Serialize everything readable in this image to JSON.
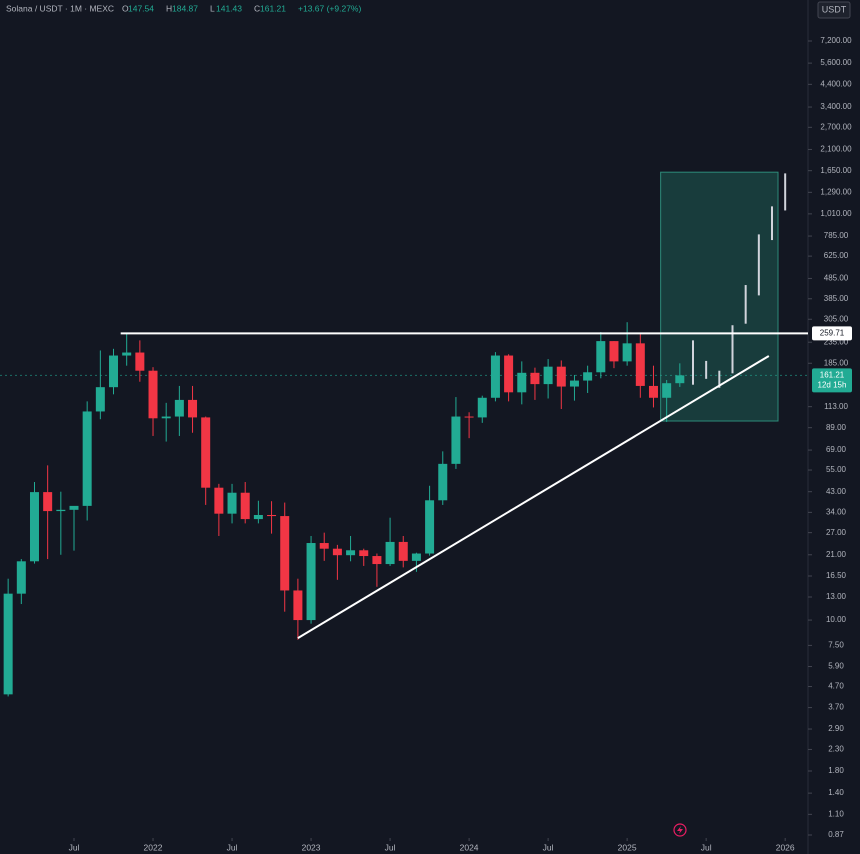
{
  "chart_data": {
    "type": "candlestick",
    "symbol": "Solana / USDT · 1M · MEXC",
    "ohlc_header": {
      "O": 147.54,
      "H": 184.87,
      "L": 141.43,
      "C": 161.21,
      "change": "+13.67 (+9.27%)"
    },
    "currency": "USDT",
    "log_scale": true,
    "ylim": [
      0.87,
      7200
    ],
    "yticks": [
      {
        "value": 7200,
        "label": "7,200.00"
      },
      {
        "value": 5600,
        "label": "5,600.00"
      },
      {
        "value": 4400,
        "label": "4,400.00"
      },
      {
        "value": 3400,
        "label": "3,400.00"
      },
      {
        "value": 2700,
        "label": "2,700.00"
      },
      {
        "value": 2100,
        "label": "2,100.00"
      },
      {
        "value": 1650,
        "label": "1,650.00"
      },
      {
        "value": 1290,
        "label": "1,290.00"
      },
      {
        "value": 1010,
        "label": "1,010.00"
      },
      {
        "value": 785,
        "label": "785.00"
      },
      {
        "value": 625,
        "label": "625.00"
      },
      {
        "value": 485,
        "label": "485.00"
      },
      {
        "value": 385,
        "label": "385.00"
      },
      {
        "value": 305,
        "label": "305.00"
      },
      {
        "value": 235,
        "label": "235.00"
      },
      {
        "value": 185,
        "label": "185.00"
      },
      {
        "value": 113,
        "label": "113.00"
      },
      {
        "value": 89,
        "label": "89.00"
      },
      {
        "value": 69,
        "label": "69.00"
      },
      {
        "value": 55,
        "label": "55.00"
      },
      {
        "value": 43,
        "label": "43.00"
      },
      {
        "value": 34,
        "label": "34.00"
      },
      {
        "value": 27,
        "label": "27.00"
      },
      {
        "value": 21,
        "label": "21.00"
      },
      {
        "value": 16.5,
        "label": "16.50"
      },
      {
        "value": 13,
        "label": "13.00"
      },
      {
        "value": 10,
        "label": "10.00"
      },
      {
        "value": 7.5,
        "label": "7.50"
      },
      {
        "value": 5.9,
        "label": "5.90"
      },
      {
        "value": 4.7,
        "label": "4.70"
      },
      {
        "value": 3.7,
        "label": "3.70"
      },
      {
        "value": 2.9,
        "label": "2.90"
      },
      {
        "value": 2.3,
        "label": "2.30"
      },
      {
        "value": 1.8,
        "label": "1.80"
      },
      {
        "value": 1.4,
        "label": "1.40"
      },
      {
        "value": 1.1,
        "label": "1.10"
      },
      {
        "value": 0.87,
        "label": "0.87"
      }
    ],
    "xticks": [
      {
        "value": "2021-07",
        "label": "Jul"
      },
      {
        "value": "2022-01",
        "label": "2022"
      },
      {
        "value": "2022-07",
        "label": "Jul"
      },
      {
        "value": "2023-01",
        "label": "2023"
      },
      {
        "value": "2023-07",
        "label": "Jul"
      },
      {
        "value": "2024-01",
        "label": "2024"
      },
      {
        "value": "2024-07",
        "label": "Jul"
      },
      {
        "value": "2025-01",
        "label": "2025"
      },
      {
        "value": "2025-07",
        "label": "Jul"
      },
      {
        "value": "2026-01",
        "label": "2026"
      }
    ],
    "up_color": "#22ab94",
    "down_color": "#f23645",
    "candles": {
      "x": [
        "2021-02",
        "2021-03",
        "2021-04",
        "2021-05",
        "2021-06",
        "2021-07",
        "2021-08",
        "2021-09",
        "2021-10",
        "2021-11",
        "2021-12",
        "2022-01",
        "2022-02",
        "2022-03",
        "2022-04",
        "2022-05",
        "2022-06",
        "2022-07",
        "2022-08",
        "2022-09",
        "2022-10",
        "2022-11",
        "2022-12",
        "2023-01",
        "2023-02",
        "2023-03",
        "2023-04",
        "2023-05",
        "2023-06",
        "2023-07",
        "2023-08",
        "2023-09",
        "2023-10",
        "2023-11",
        "2023-12",
        "2024-01",
        "2024-02",
        "2024-03",
        "2024-04",
        "2024-05",
        "2024-06",
        "2024-07",
        "2024-08",
        "2024-09",
        "2024-10",
        "2024-11",
        "2024-12",
        "2025-01",
        "2025-02",
        "2025-03",
        "2025-04",
        "2025-05"
      ],
      "open": [
        4.3,
        13.5,
        19.5,
        42.8,
        34.5,
        35,
        36.6,
        107,
        141,
        202,
        209,
        170,
        99,
        101,
        122,
        100,
        45,
        33.5,
        42.5,
        31.5,
        33,
        32.6,
        14,
        10,
        24,
        22.5,
        20.9,
        22.1,
        20.7,
        18.9,
        24.3,
        19.6,
        21.3,
        39,
        59,
        101,
        100,
        125,
        202,
        133,
        166,
        146,
        178,
        142,
        152,
        167,
        238,
        189,
        232,
        143,
        125,
        147.54
      ],
      "high": [
        16,
        20,
        48,
        58,
        43,
        36,
        120,
        214,
        218,
        259.9,
        240,
        177,
        118,
        143,
        143,
        101,
        47,
        47,
        48,
        38.8,
        38.6,
        38,
        16,
        26,
        27,
        23.5,
        26,
        22.5,
        21.3,
        32,
        26,
        21.5,
        46,
        68,
        126,
        106,
        128,
        210,
        205,
        189,
        176,
        194,
        191,
        162,
        180,
        264,
        238,
        295,
        261,
        180,
        153,
        184.87
      ],
      "low": [
        4.2,
        12,
        19,
        20,
        21,
        22,
        31,
        98,
        130,
        180,
        150,
        81,
        76,
        81,
        84,
        37,
        26,
        30,
        30,
        30,
        26.7,
        11,
        8,
        9.6,
        19.6,
        15.8,
        19.5,
        18.5,
        14.6,
        18.5,
        18.2,
        17.3,
        20.8,
        37,
        55.7,
        79,
        94,
        120,
        120,
        116,
        122,
        124,
        110,
        121,
        132,
        156,
        175,
        180,
        125,
        112,
        95,
        141.43
      ],
      "close": [
        13.5,
        19.5,
        42.8,
        34.5,
        35,
        36.6,
        107,
        141,
        202,
        209,
        170,
        99,
        101,
        122,
        100,
        45,
        33.5,
        42.5,
        31.5,
        33,
        32.6,
        14,
        10,
        24,
        22.5,
        20.9,
        22.1,
        20.7,
        18.9,
        24.3,
        19.6,
        21.3,
        39,
        59,
        101,
        100,
        125,
        202,
        133,
        166,
        146,
        178,
        142,
        152,
        167,
        238,
        189,
        232,
        143,
        125,
        147.5,
        161.21
      ]
    },
    "projection": {
      "color": "#d1d4dc",
      "x": [
        "2025-06",
        "2025-07",
        "2025-08",
        "2025-09",
        "2025-10",
        "2025-11",
        "2025-12",
        "2026-01"
      ],
      "low": [
        145,
        155,
        140,
        165,
        290,
        400,
        750,
        1050
      ],
      "high": [
        240,
        190,
        170,
        285,
        450,
        800,
        1100,
        1600
      ]
    },
    "resistance": {
      "value": 259.71,
      "label": "259.71",
      "from": "2021-11",
      "color": "#ffffff"
    },
    "trendline": {
      "x": [
        "2022-12",
        "2025-11"
      ],
      "y": [
        8.15,
        201
      ],
      "color": "#ffffff"
    },
    "target_box": {
      "x": [
        "2025-04",
        "2025-12"
      ],
      "y": [
        96,
        1622
      ],
      "color": "#1e5b52"
    },
    "last_price": {
      "value": 161.21,
      "label": "161.21",
      "countdown": "12d 15h"
    }
  }
}
